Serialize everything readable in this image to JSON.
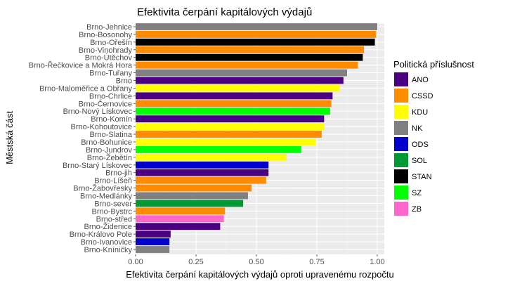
{
  "chart_data": {
    "type": "bar",
    "orientation": "horizontal",
    "title": "Efektivita čerpání kapitálových výdajů",
    "xlabel": "Efektivita čerpání kapitálových výdajů oproti upravenému rozpočtu",
    "ylabel": "Městská část",
    "xlim": [
      0,
      1
    ],
    "x_ticks": [
      "0.00",
      "0.25",
      "0.50",
      "0.75",
      "1.00"
    ],
    "x_tick_values": [
      0,
      0.25,
      0.5,
      0.75,
      1.0
    ],
    "grid": true,
    "legend": {
      "title": "Politická příslušnost",
      "position": "right",
      "entries": [
        {
          "name": "ANO",
          "color": "#4B0082"
        },
        {
          "name": "CSSD",
          "color": "#FF8C00"
        },
        {
          "name": "KDU",
          "color": "#FFFF00"
        },
        {
          "name": "NK",
          "color": "#808080"
        },
        {
          "name": "ODS",
          "color": "#0000CD"
        },
        {
          "name": "SOL",
          "color": "#009933"
        },
        {
          "name": "STAN",
          "color": "#000000"
        },
        {
          "name": "SZ",
          "color": "#00FF00"
        },
        {
          "name": "ZB",
          "color": "#FF66CC"
        }
      ]
    },
    "bars": [
      {
        "category": "Brno-Jehnice",
        "value": 1.0,
        "party": "NK"
      },
      {
        "category": "Brno-Bosonohy",
        "value": 0.995,
        "party": "CSSD"
      },
      {
        "category": "Brno-Ořešín",
        "value": 0.99,
        "party": "STAN"
      },
      {
        "category": "Brno-Vinohrady",
        "value": 0.945,
        "party": "CSSD"
      },
      {
        "category": "Brno-Útěchov",
        "value": 0.94,
        "party": "STAN"
      },
      {
        "category": "Brno-Řečkovice a Mokrá Hora",
        "value": 0.92,
        "party": "CSSD"
      },
      {
        "category": "Brno-Tuřany",
        "value": 0.875,
        "party": "NK"
      },
      {
        "category": "Brno",
        "value": 0.86,
        "party": "ANO"
      },
      {
        "category": "Brno-Maloměřice a Obřany",
        "value": 0.845,
        "party": "KDU"
      },
      {
        "category": "Brno-Chrlice",
        "value": 0.815,
        "party": "ANO"
      },
      {
        "category": "Brno-Černovice",
        "value": 0.81,
        "party": "CSSD"
      },
      {
        "category": "Brno-Nový Lískovec",
        "value": 0.805,
        "party": "SZ"
      },
      {
        "category": "Brno-Komín",
        "value": 0.78,
        "party": "ANO"
      },
      {
        "category": "Brno-Kohoutovice",
        "value": 0.78,
        "party": "KDU"
      },
      {
        "category": "Brno-Slatina",
        "value": 0.77,
        "party": "CSSD"
      },
      {
        "category": "Brno-Bohunice",
        "value": 0.745,
        "party": "KDU"
      },
      {
        "category": "Brno-Jundrov",
        "value": 0.685,
        "party": "SZ"
      },
      {
        "category": "Brno-Žebětín",
        "value": 0.625,
        "party": "KDU"
      },
      {
        "category": "Brno-Starý Lískovec",
        "value": 0.55,
        "party": "ODS"
      },
      {
        "category": "Brno-jih",
        "value": 0.55,
        "party": "ANO"
      },
      {
        "category": "Brno-Líšeň",
        "value": 0.54,
        "party": "CSSD"
      },
      {
        "category": "Brno-Žabovřesky",
        "value": 0.48,
        "party": "CSSD"
      },
      {
        "category": "Brno-Medlánky",
        "value": 0.465,
        "party": "NK"
      },
      {
        "category": "Brno-sever",
        "value": 0.445,
        "party": "SOL"
      },
      {
        "category": "Brno-Bystrc",
        "value": 0.37,
        "party": "CSSD"
      },
      {
        "category": "Brno-střed",
        "value": 0.365,
        "party": "ZB"
      },
      {
        "category": "Brno-Židenice",
        "value": 0.35,
        "party": "ANO"
      },
      {
        "category": "Brno-Královo Pole",
        "value": 0.145,
        "party": "ANO"
      },
      {
        "category": "Brno-Ivanovice",
        "value": 0.14,
        "party": "ODS"
      },
      {
        "category": "Brno-Kníničky",
        "value": 0.14,
        "party": "NK"
      }
    ]
  }
}
